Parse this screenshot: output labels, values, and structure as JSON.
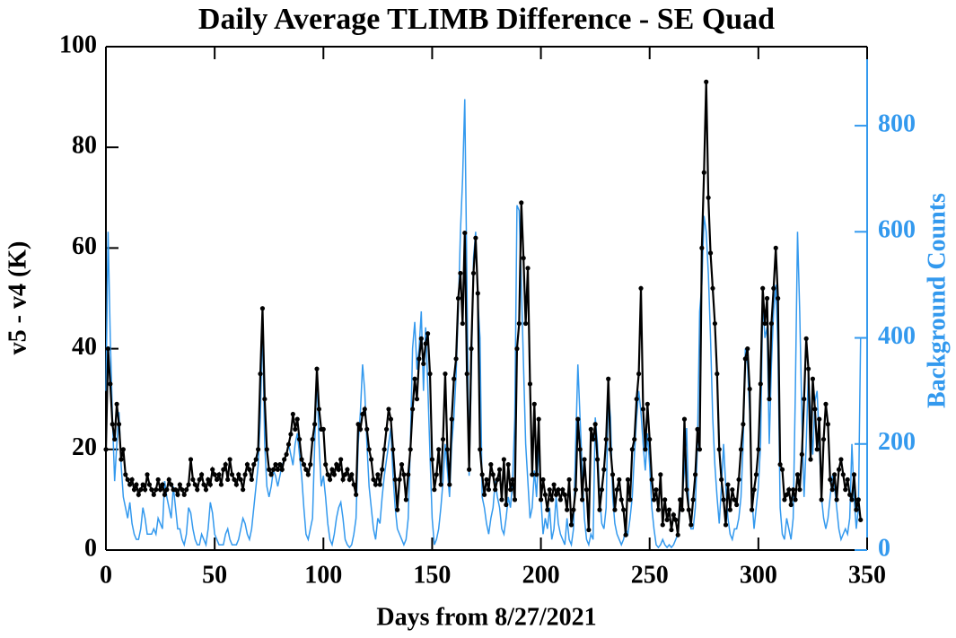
{
  "chart_data": {
    "type": "line",
    "title": "Daily Average TLIMB Difference - SE Quad",
    "x_label": "Days from 8/27/2021",
    "y_label": "v5 - v4 (K)",
    "y2_label": "Background Counts",
    "xlim": [
      0,
      350
    ],
    "xticks": [
      0,
      50,
      100,
      150,
      200,
      250,
      300,
      350
    ],
    "ylim": [
      0,
      100
    ],
    "yticks": [
      0,
      20,
      40,
      60,
      80,
      100
    ],
    "y2lim": [
      0,
      949
    ],
    "y2ticks": [
      0,
      200,
      400,
      600,
      800
    ],
    "series": [
      {
        "name": "Background Counts",
        "axis": "y2",
        "color": "#3399ee",
        "markers": false,
        "values": [
          300,
          600,
          400,
          250,
          130,
          200,
          260,
          160,
          100,
          80,
          60,
          90,
          50,
          30,
          20,
          20,
          40,
          80,
          60,
          30,
          30,
          30,
          40,
          30,
          60,
          50,
          40,
          130,
          100,
          80,
          60,
          120,
          80,
          40,
          40,
          20,
          10,
          30,
          80,
          70,
          40,
          20,
          10,
          10,
          30,
          20,
          10,
          40,
          90,
          70,
          30,
          20,
          10,
          10,
          10,
          30,
          40,
          20,
          10,
          10,
          10,
          20,
          40,
          60,
          50,
          30,
          20,
          40,
          80,
          120,
          160,
          250,
          430,
          200,
          120,
          100,
          120,
          150,
          140,
          120,
          140,
          160,
          170,
          180,
          200,
          180,
          160,
          200,
          220,
          180,
          140,
          80,
          30,
          20,
          40,
          60,
          200,
          330,
          200,
          120,
          140,
          100,
          50,
          20,
          10,
          30,
          60,
          80,
          90,
          60,
          20,
          10,
          5,
          10,
          30,
          60,
          200,
          260,
          350,
          300,
          200,
          120,
          80,
          40,
          20,
          60,
          50,
          100,
          140,
          170,
          200,
          230,
          140,
          80,
          40,
          30,
          20,
          10,
          20,
          60,
          200,
          380,
          430,
          340,
          380,
          450,
          300,
          420,
          310,
          180,
          60,
          10,
          20,
          40,
          80,
          130,
          200,
          150,
          100,
          200,
          250,
          330,
          450,
          600,
          700,
          850,
          500,
          140,
          330,
          550,
          600,
          470,
          400,
          100,
          80,
          50,
          30,
          60,
          80,
          130,
          100,
          80,
          40,
          30,
          60,
          100,
          80,
          130,
          250,
          650,
          640,
          500,
          350,
          200,
          130,
          60,
          80,
          150,
          100,
          200,
          100,
          30,
          60,
          40,
          80,
          20,
          40,
          100,
          50,
          30,
          20,
          10,
          60,
          20,
          10,
          40,
          200,
          350,
          250,
          150,
          60,
          20,
          10,
          30,
          20,
          250,
          200,
          100,
          50,
          40,
          80,
          300,
          250,
          100,
          50,
          30,
          20,
          10,
          20,
          40,
          30,
          60,
          100,
          180,
          250,
          300,
          260,
          200,
          150,
          220,
          160,
          80,
          40,
          10,
          5,
          10,
          20,
          10,
          5,
          10,
          5,
          10,
          20,
          30,
          80,
          100,
          150,
          230,
          80,
          40,
          40,
          80,
          200,
          450,
          500,
          630,
          600,
          520,
          400,
          250,
          160,
          100,
          50,
          120,
          200,
          120,
          60,
          30,
          20,
          40,
          40,
          60,
          100,
          200,
          380,
          350,
          260,
          100,
          40,
          80,
          120,
          200,
          470,
          400,
          420,
          200,
          350,
          450,
          500,
          380,
          80,
          30,
          20,
          60,
          40,
          20,
          60,
          300,
          600,
          450,
          250,
          100,
          200,
          340,
          250,
          180,
          280,
          300,
          200,
          100,
          60,
          40,
          60,
          100,
          140,
          120,
          80,
          40,
          20,
          30,
          40,
          30,
          60,
          200,
          100,
          40,
          80,
          400
        ]
      },
      {
        "name": "v5 - v4 (K)",
        "axis": "y",
        "color": "#000000",
        "markers": true,
        "values": [
          20,
          40,
          33,
          25,
          22,
          29,
          25,
          18,
          20,
          15,
          14,
          13,
          14,
          12,
          13,
          11,
          12,
          13,
          12,
          15,
          13,
          12,
          11,
          12,
          14,
          12,
          13,
          11,
          12,
          14,
          13,
          12,
          12,
          11,
          13,
          12,
          11,
          12,
          13,
          18,
          14,
          13,
          12,
          14,
          15,
          13,
          12,
          14,
          13,
          16,
          15,
          14,
          15,
          13,
          16,
          17,
          14,
          18,
          15,
          14,
          13,
          15,
          14,
          12,
          15,
          17,
          16,
          14,
          17,
          18,
          20,
          35,
          48,
          30,
          20,
          16,
          15,
          16,
          17,
          16,
          17,
          16,
          18,
          19,
          21,
          23,
          27,
          24,
          26,
          22,
          18,
          17,
          16,
          15,
          17,
          22,
          25,
          36,
          28,
          24,
          24,
          17,
          15,
          14,
          16,
          15,
          17,
          16,
          18,
          14,
          15,
          16,
          14,
          15,
          13,
          11,
          25,
          24,
          27,
          28,
          24,
          20,
          18,
          14,
          13,
          15,
          13,
          16,
          20,
          24,
          28,
          26,
          20,
          14,
          8,
          14,
          17,
          15,
          10,
          15,
          20,
          28,
          34,
          30,
          38,
          42,
          37,
          41,
          43,
          35,
          18,
          12,
          15,
          20,
          13,
          22,
          35,
          20,
          13,
          26,
          34,
          38,
          50,
          55,
          45,
          63,
          35,
          16,
          40,
          55,
          62,
          51,
          20,
          15,
          11,
          14,
          12,
          17,
          15,
          12,
          14,
          16,
          10,
          18,
          9,
          17,
          12,
          14,
          10,
          40,
          45,
          69,
          58,
          45,
          56,
          33,
          15,
          29,
          15,
          26,
          10,
          14,
          11,
          8,
          12,
          10,
          13,
          11,
          12,
          10,
          12,
          11,
          8,
          14,
          5,
          8,
          12,
          26,
          20,
          10,
          18,
          12,
          4,
          24,
          22,
          25,
          18,
          8,
          12,
          16,
          22,
          34,
          20,
          15,
          8,
          12,
          14,
          10,
          8,
          3,
          14,
          10,
          20,
          22,
          30,
          35,
          52,
          28,
          20,
          29,
          22,
          14,
          10,
          12,
          8,
          15,
          5,
          10,
          6,
          8,
          4,
          7,
          6,
          3,
          10,
          8,
          26,
          12,
          8,
          5,
          10,
          15,
          24,
          20,
          60,
          75,
          93,
          70,
          59,
          52,
          45,
          35,
          20,
          14,
          10,
          5,
          13,
          8,
          12,
          10,
          9,
          14,
          20,
          25,
          38,
          40,
          32,
          8,
          12,
          15,
          20,
          33,
          52,
          45,
          50,
          30,
          45,
          52,
          60,
          50,
          17,
          16,
          10,
          11,
          12,
          9,
          12,
          10,
          15,
          12,
          19,
          30,
          42,
          36,
          18,
          34,
          28,
          20,
          26,
          10,
          22,
          29,
          25,
          14,
          12,
          15,
          10,
          16,
          18,
          15,
          12,
          14,
          11,
          10,
          15,
          8,
          10,
          6
        ]
      }
    ]
  }
}
